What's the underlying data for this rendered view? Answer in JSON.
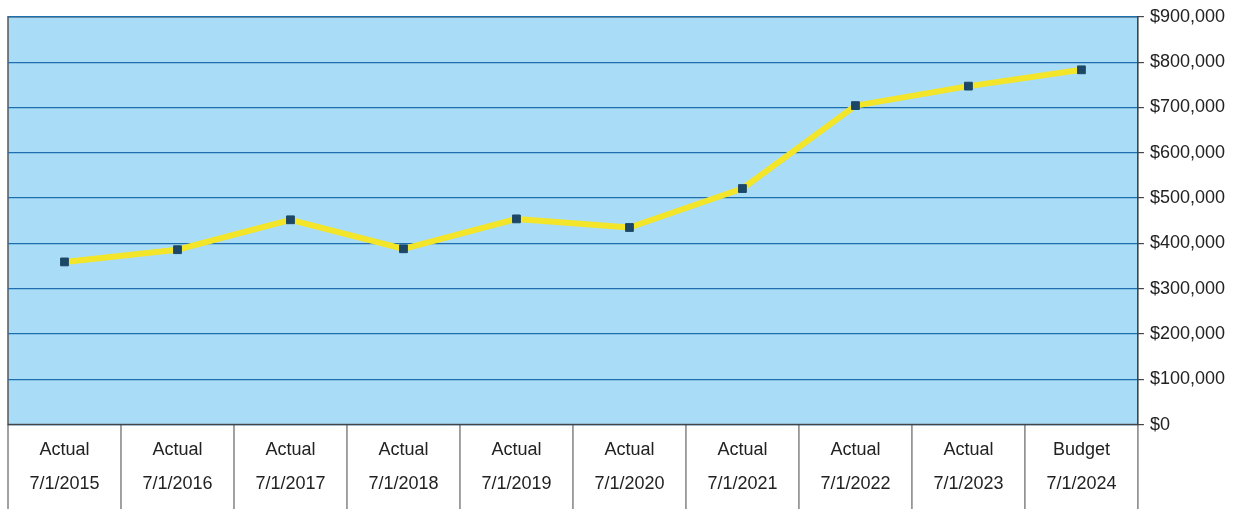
{
  "chart_data": {
    "type": "line",
    "categories": [
      "Actual\n7/1/2015",
      "Actual\n7/1/2016",
      "Actual\n7/1/2017",
      "Actual\n7/1/2018",
      "Actual\n7/1/2019",
      "Actual\n7/1/2020",
      "Actual\n7/1/2021",
      "Actual\n7/1/2022",
      "Actual\n7/1/2023",
      "Budget\n7/1/2024"
    ],
    "values": [
      359000,
      386000,
      452000,
      388000,
      454000,
      435000,
      521000,
      704000,
      747000,
      783000
    ],
    "color": "#f2e52a",
    "marker": "square",
    "line_style": "solid",
    "ylim": [
      0,
      900000
    ],
    "yticks": [
      {
        "value": 0,
        "label": "$0"
      },
      {
        "value": 100000,
        "label": "$100,000"
      },
      {
        "value": 200000,
        "label": "$200,000"
      },
      {
        "value": 300000,
        "label": "$300,000"
      },
      {
        "value": 400000,
        "label": "$400,000"
      },
      {
        "value": 500000,
        "label": "$500,000"
      },
      {
        "value": 600000,
        "label": "$600,000"
      },
      {
        "value": 700000,
        "label": "$700,000"
      },
      {
        "value": 800000,
        "label": "$800,000"
      },
      {
        "value": 900000,
        "label": "$900,000"
      }
    ],
    "grid": "y",
    "legend": false
  }
}
